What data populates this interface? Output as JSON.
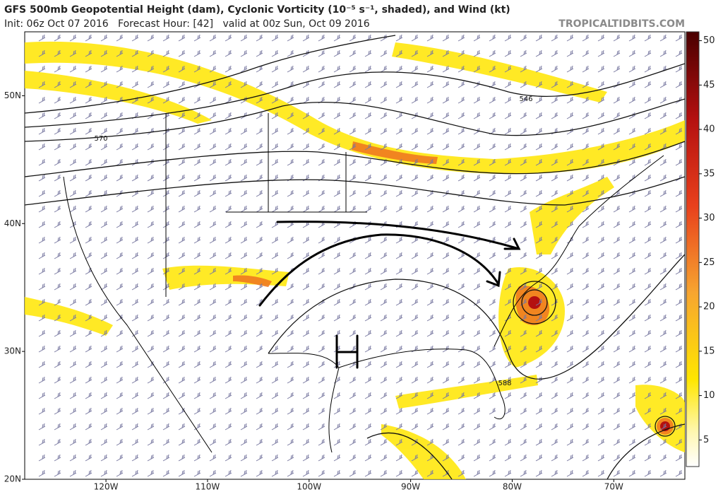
{
  "header": {
    "title": "GFS 500mb Geopotential Height (dam), Cyclonic Vorticity (10⁻⁵ s⁻¹, shaded), and Wind (kt)",
    "subtitle": "Init: 06z Oct 07 2016   Forecast Hour: [42]   valid at 00z Sun, Oct 09 2016",
    "credit": "TROPICALTIDBITS.COM"
  },
  "map": {
    "lonlim": [
      -128,
      -63
    ],
    "latlim": [
      20,
      55
    ],
    "lonticks": [
      {
        "value": -120,
        "label": "120W"
      },
      {
        "value": -110,
        "label": "110W"
      },
      {
        "value": -100,
        "label": "100W"
      },
      {
        "value": -90,
        "label": "90W"
      },
      {
        "value": -80,
        "label": "80W"
      },
      {
        "value": -70,
        "label": "70W"
      }
    ],
    "latticks": [
      {
        "value": 50,
        "label": "50N"
      },
      {
        "value": 40,
        "label": "40N"
      },
      {
        "value": 30,
        "label": "30N"
      },
      {
        "value": 20,
        "label": "20N"
      }
    ],
    "contour_labels": [
      "570",
      "546",
      "588"
    ]
  },
  "colorbar": {
    "range": [
      2,
      51
    ],
    "ticks": [
      5,
      10,
      15,
      20,
      25,
      30,
      35,
      40,
      45,
      50
    ]
  }
}
